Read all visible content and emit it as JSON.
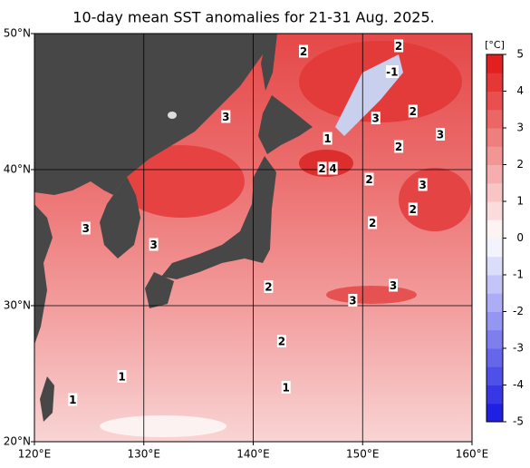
{
  "title": "10-day mean SST anomalies for 21-31 Aug. 2025.",
  "map": {
    "lonlim": [
      120,
      160
    ],
    "latlim": [
      20,
      50
    ],
    "lonticks": [
      {
        "value": 120,
        "label": "120°E"
      },
      {
        "value": 130,
        "label": "130°E"
      },
      {
        "value": 140,
        "label": "140°E"
      },
      {
        "value": 150,
        "label": "150°E"
      },
      {
        "value": 160,
        "label": "160°E"
      }
    ],
    "latticks": [
      {
        "value": 20,
        "label": "20°N"
      },
      {
        "value": 30,
        "label": "30°N"
      },
      {
        "value": 40,
        "label": "40°N"
      },
      {
        "value": 50,
        "label": "50°N"
      }
    ],
    "grid": true,
    "contour_labels": [
      {
        "label": 2,
        "lon": 144.6,
        "lat": 48.7
      },
      {
        "label": 2,
        "lon": 153.3,
        "lat": 49.1
      },
      {
        "label": -1,
        "lon": 152.7,
        "lat": 47.2
      },
      {
        "label": 3,
        "lon": 137.5,
        "lat": 43.9
      },
      {
        "label": 2,
        "lon": 154.6,
        "lat": 44.3
      },
      {
        "label": 3,
        "lon": 151.2,
        "lat": 43.8
      },
      {
        "label": 3,
        "lon": 157.1,
        "lat": 42.6
      },
      {
        "label": 1,
        "lon": 146.8,
        "lat": 42.3
      },
      {
        "label": 2,
        "lon": 153.3,
        "lat": 41.7
      },
      {
        "label": 2,
        "lon": 146.3,
        "lat": 40.1
      },
      {
        "label": 4,
        "lon": 147.3,
        "lat": 40.1
      },
      {
        "label": 2,
        "lon": 150.6,
        "lat": 39.3
      },
      {
        "label": 3,
        "lon": 155.5,
        "lat": 38.9
      },
      {
        "label": 2,
        "lon": 154.6,
        "lat": 37.1
      },
      {
        "label": 2,
        "lon": 150.9,
        "lat": 36.1
      },
      {
        "label": 3,
        "lon": 124.7,
        "lat": 35.7
      },
      {
        "label": 3,
        "lon": 130.9,
        "lat": 34.5
      },
      {
        "label": 2,
        "lon": 141.4,
        "lat": 31.4
      },
      {
        "label": 3,
        "lon": 152.8,
        "lat": 31.5
      },
      {
        "label": 3,
        "lon": 149.1,
        "lat": 30.4
      },
      {
        "label": 2,
        "lon": 142.6,
        "lat": 27.4
      },
      {
        "label": 1,
        "lon": 128.0,
        "lat": 24.8
      },
      {
        "label": 1,
        "lon": 143.0,
        "lat": 24.0
      },
      {
        "label": 1,
        "lon": 123.5,
        "lat": 23.1
      }
    ]
  },
  "colorbar": {
    "unit": "[°C]",
    "lim": [
      -5,
      5
    ],
    "ticks": [
      5,
      4,
      3,
      2,
      1,
      0,
      -1,
      -2,
      -3,
      -4,
      -5
    ]
  }
}
